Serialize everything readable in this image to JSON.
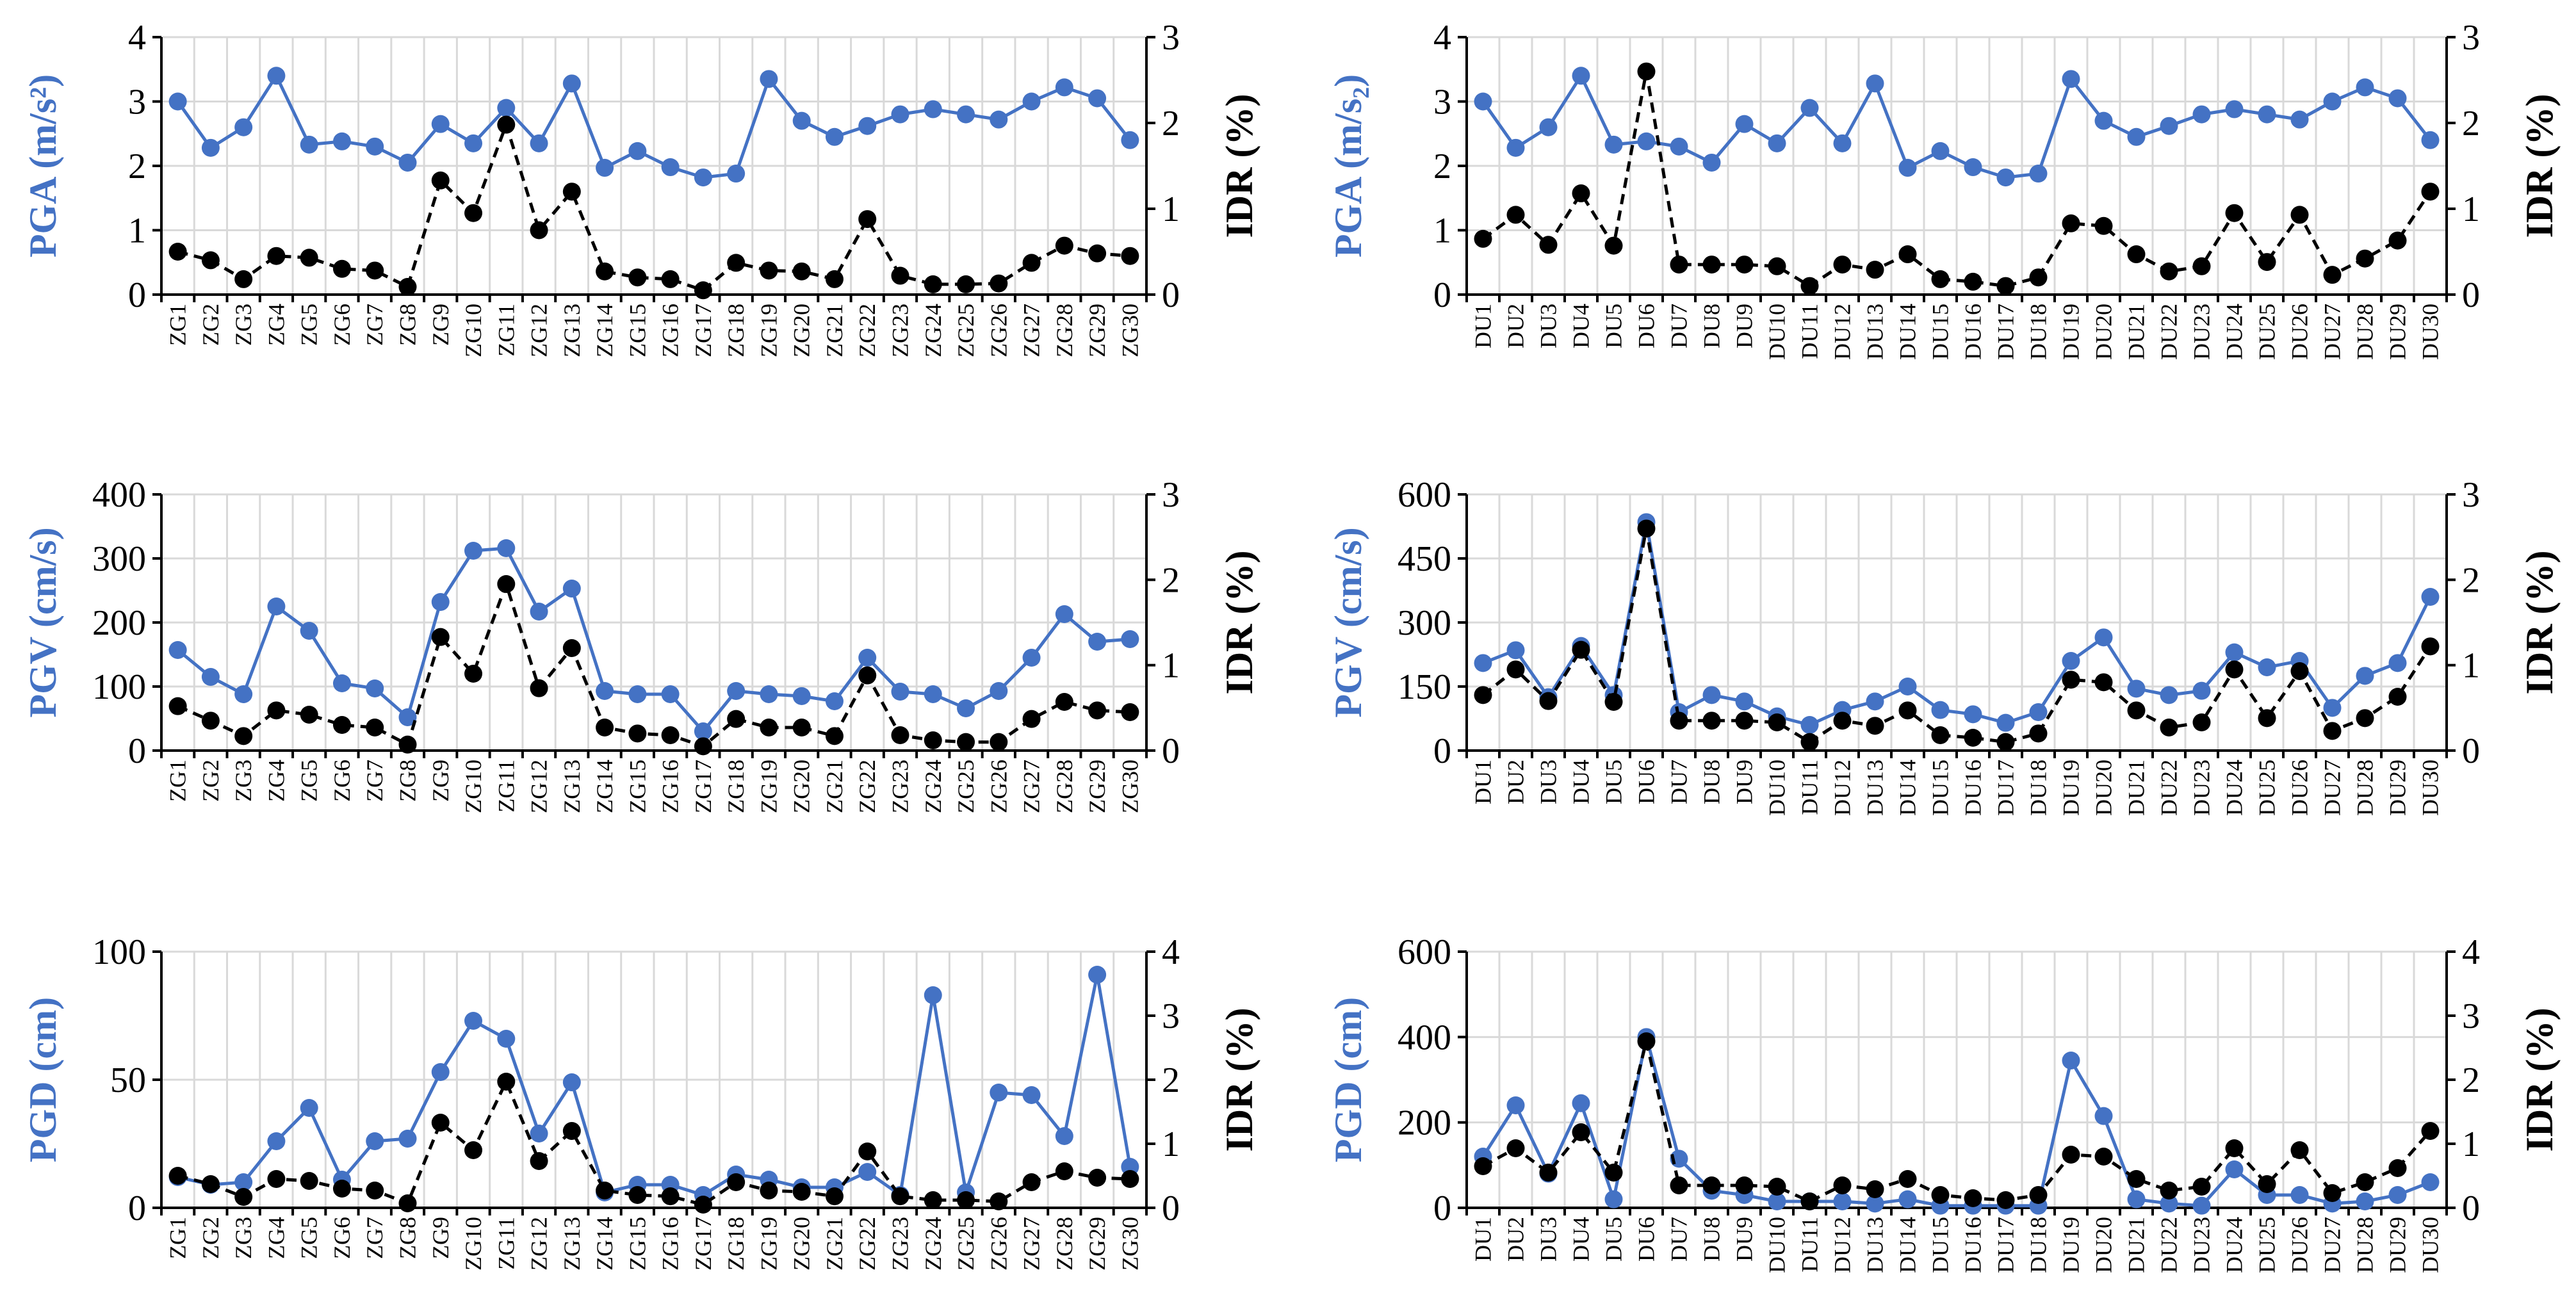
{
  "colors": {
    "ground_motion": "#4472c4",
    "idr": "#000000",
    "grid": "#d9d9d9"
  },
  "chart_data": [
    {
      "type": "line",
      "left_axis_title": "PGA (m/s²)",
      "right_axis_title": "IDR (%)",
      "categories": [
        "ZG1",
        "ZG2",
        "ZG3",
        "ZG4",
        "ZG5",
        "ZG6",
        "ZG7",
        "ZG8",
        "ZG9",
        "ZG10",
        "ZG11",
        "ZG12",
        "ZG13",
        "ZG14",
        "ZG15",
        "ZG16",
        "ZG17",
        "ZG18",
        "ZG19",
        "ZG20",
        "ZG21",
        "ZG22",
        "ZG23",
        "ZG24",
        "ZG25",
        "ZG26",
        "ZG27",
        "ZG28",
        "ZG29",
        "ZG30"
      ],
      "left_ylim": [
        0,
        4
      ],
      "left_ticks": [
        "0",
        "1",
        "2",
        "3",
        "4"
      ],
      "right_ylim": [
        0,
        3
      ],
      "right_ticks": [
        "0",
        "1",
        "2",
        "3"
      ],
      "series": [
        {
          "name": "PGA",
          "axis": "left",
          "style": "solid",
          "values": [
            3.0,
            2.28,
            2.6,
            3.4,
            2.33,
            2.38,
            2.3,
            2.05,
            2.65,
            2.35,
            2.9,
            2.35,
            3.28,
            1.97,
            2.23,
            1.98,
            1.82,
            1.88,
            3.35,
            2.7,
            2.45,
            2.62,
            2.8,
            2.88,
            2.8,
            2.72,
            3.0,
            3.22,
            3.05,
            2.4
          ]
        },
        {
          "name": "IDR",
          "axis": "right",
          "style": "dashed",
          "values": [
            0.5,
            0.4,
            0.18,
            0.45,
            0.43,
            0.3,
            0.28,
            0.09,
            1.33,
            0.95,
            1.98,
            0.75,
            1.2,
            0.27,
            0.2,
            0.18,
            0.05,
            0.37,
            0.28,
            0.27,
            0.18,
            0.88,
            0.22,
            0.12,
            0.12,
            0.13,
            0.37,
            0.57,
            0.48,
            0.45
          ]
        }
      ]
    },
    {
      "type": "line",
      "left_axis_title": "PGA (m/s₂)",
      "right_axis_title": "IDR (%)",
      "categories": [
        "DU1",
        "DU2",
        "DU3",
        "DU4",
        "DU5",
        "DU6",
        "DU7",
        "DU8",
        "DU9",
        "DU10",
        "DU11",
        "DU12",
        "DU13",
        "DU14",
        "DU15",
        "DU16",
        "DU17",
        "DU18",
        "DU19",
        "DU20",
        "DU21",
        "DU22",
        "DU23",
        "DU24",
        "DU25",
        "DU26",
        "DU27",
        "DU28",
        "DU29",
        "DU30"
      ],
      "left_ylim": [
        0,
        4
      ],
      "left_ticks": [
        "0",
        "1",
        "2",
        "3",
        "4"
      ],
      "right_ylim": [
        0,
        3
      ],
      "right_ticks": [
        "0",
        "1",
        "2",
        "3"
      ],
      "series": [
        {
          "name": "PGA",
          "axis": "left",
          "style": "solid",
          "values": [
            3.0,
            2.28,
            2.6,
            3.4,
            2.33,
            2.38,
            2.3,
            2.05,
            2.65,
            2.35,
            2.9,
            2.35,
            3.28,
            1.97,
            2.23,
            1.98,
            1.82,
            1.88,
            3.35,
            2.7,
            2.45,
            2.62,
            2.8,
            2.88,
            2.8,
            2.72,
            3.0,
            3.22,
            3.05,
            2.4
          ]
        },
        {
          "name": "IDR",
          "axis": "right",
          "style": "dashed",
          "values": [
            0.65,
            0.93,
            0.58,
            1.18,
            0.57,
            2.6,
            0.35,
            0.35,
            0.35,
            0.33,
            0.1,
            0.35,
            0.29,
            0.47,
            0.18,
            0.15,
            0.1,
            0.2,
            0.83,
            0.8,
            0.47,
            0.27,
            0.33,
            0.95,
            0.38,
            0.93,
            0.23,
            0.42,
            0.63,
            1.2
          ]
        }
      ]
    },
    {
      "type": "line",
      "left_axis_title": "PGV (cm/s)",
      "right_axis_title": "IDR (%)",
      "categories": [
        "ZG1",
        "ZG2",
        "ZG3",
        "ZG4",
        "ZG5",
        "ZG6",
        "ZG7",
        "ZG8",
        "ZG9",
        "ZG10",
        "ZG11",
        "ZG12",
        "ZG13",
        "ZG14",
        "ZG15",
        "ZG16",
        "ZG17",
        "ZG18",
        "ZG19",
        "ZG20",
        "ZG21",
        "ZG22",
        "ZG23",
        "ZG24",
        "ZG25",
        "ZG26",
        "ZG27",
        "ZG28",
        "ZG29",
        "ZG30"
      ],
      "left_ylim": [
        0,
        400
      ],
      "left_ticks": [
        "0",
        "100",
        "200",
        "300",
        "400"
      ],
      "right_ylim": [
        0,
        3
      ],
      "right_ticks": [
        "0",
        "1",
        "2",
        "3"
      ],
      "series": [
        {
          "name": "PGV",
          "axis": "left",
          "style": "solid",
          "values": [
            157,
            115,
            88,
            225,
            187,
            105,
            97,
            52,
            232,
            312,
            316,
            217,
            253,
            93,
            88,
            88,
            30,
            93,
            88,
            85,
            77,
            145,
            92,
            88,
            66,
            93,
            145,
            213,
            170,
            174
          ]
        },
        {
          "name": "IDR",
          "axis": "right",
          "style": "dashed",
          "values": [
            0.52,
            0.35,
            0.17,
            0.47,
            0.42,
            0.3,
            0.27,
            0.07,
            1.33,
            0.9,
            1.95,
            0.73,
            1.2,
            0.27,
            0.2,
            0.18,
            0.05,
            0.37,
            0.27,
            0.27,
            0.17,
            0.88,
            0.18,
            0.12,
            0.1,
            0.1,
            0.37,
            0.57,
            0.47,
            0.45
          ]
        }
      ]
    },
    {
      "type": "line",
      "left_axis_title": "PGV (cm/s)",
      "right_axis_title": "IDR (%)",
      "categories": [
        "DU1",
        "DU2",
        "DU3",
        "DU4",
        "DU5",
        "DU6",
        "DU7",
        "DU8",
        "DU9",
        "DU10",
        "DU11",
        "DU12",
        "DU13",
        "DU14",
        "DU15",
        "DU16",
        "DU17",
        "DU18",
        "DU19",
        "DU20",
        "DU21",
        "DU22",
        "DU23",
        "DU24",
        "DU25",
        "DU26",
        "DU27",
        "DU28",
        "DU29",
        "DU30"
      ],
      "left_ylim": [
        0,
        600
      ],
      "left_ticks": [
        "0",
        "150",
        "300",
        "450",
        "600"
      ],
      "right_ylim": [
        0,
        3
      ],
      "right_ticks": [
        "0",
        "1",
        "2",
        "3"
      ],
      "series": [
        {
          "name": "PGV",
          "axis": "left",
          "style": "solid",
          "values": [
            205,
            235,
            125,
            245,
            130,
            535,
            90,
            130,
            115,
            80,
            60,
            95,
            115,
            150,
            95,
            85,
            65,
            90,
            210,
            265,
            145,
            130,
            140,
            230,
            195,
            210,
            100,
            175,
            205,
            360
          ]
        },
        {
          "name": "IDR",
          "axis": "right",
          "style": "dashed",
          "values": [
            0.65,
            0.95,
            0.58,
            1.18,
            0.57,
            2.6,
            0.35,
            0.35,
            0.35,
            0.33,
            0.1,
            0.35,
            0.29,
            0.47,
            0.18,
            0.15,
            0.1,
            0.2,
            0.83,
            0.8,
            0.47,
            0.27,
            0.33,
            0.95,
            0.38,
            0.93,
            0.23,
            0.38,
            0.63,
            1.22
          ]
        }
      ]
    },
    {
      "type": "line",
      "left_axis_title": "PGD (cm)",
      "right_axis_title": "IDR (%)",
      "categories": [
        "ZG1",
        "ZG2",
        "ZG3",
        "ZG4",
        "ZG5",
        "ZG6",
        "ZG7",
        "ZG8",
        "ZG9",
        "ZG10",
        "ZG11",
        "ZG12",
        "ZG13",
        "ZG14",
        "ZG15",
        "ZG16",
        "ZG17",
        "ZG18",
        "ZG19",
        "ZG20",
        "ZG21",
        "ZG22",
        "ZG23",
        "ZG24",
        "ZG25",
        "ZG26",
        "ZG27",
        "ZG28",
        "ZG29",
        "ZG30"
      ],
      "left_ylim": [
        0,
        100
      ],
      "left_ticks": [
        "0",
        "50",
        "100"
      ],
      "right_ylim": [
        0,
        4
      ],
      "right_ticks": [
        "0",
        "1",
        "2",
        "3",
        "4"
      ],
      "series": [
        {
          "name": "PGD",
          "axis": "left",
          "style": "solid",
          "values": [
            12,
            9,
            10,
            26,
            39,
            11,
            26,
            27,
            53,
            73,
            66,
            29,
            49,
            6,
            9,
            9,
            5,
            13,
            11,
            8,
            8,
            14,
            5,
            83,
            6,
            45,
            44,
            28,
            91,
            16
          ]
        },
        {
          "name": "IDR",
          "axis": "right",
          "style": "dashed",
          "values": [
            0.5,
            0.37,
            0.17,
            0.45,
            0.42,
            0.3,
            0.27,
            0.07,
            1.33,
            0.9,
            1.97,
            0.73,
            1.2,
            0.27,
            0.2,
            0.18,
            0.05,
            0.4,
            0.27,
            0.25,
            0.18,
            0.88,
            0.18,
            0.12,
            0.12,
            0.1,
            0.4,
            0.57,
            0.47,
            0.45
          ]
        }
      ]
    },
    {
      "type": "line",
      "left_axis_title": "PGD (cm)",
      "right_axis_title": "IDR (%)",
      "categories": [
        "DU1",
        "DU2",
        "DU3",
        "DU4",
        "DU5",
        "DU6",
        "DU7",
        "DU8",
        "DU9",
        "DU10",
        "DU11",
        "DU12",
        "DU13",
        "DU14",
        "DU15",
        "DU16",
        "DU17",
        "DU18",
        "DU19",
        "DU20",
        "DU21",
        "DU22",
        "DU23",
        "DU24",
        "DU25",
        "DU26",
        "DU27",
        "DU28",
        "DU29",
        "DU30"
      ],
      "left_ylim": [
        0,
        600
      ],
      "left_ticks": [
        "0",
        "200",
        "400",
        "600"
      ],
      "right_ylim": [
        0,
        4
      ],
      "right_ticks": [
        "0",
        "1",
        "2",
        "3",
        "4"
      ],
      "series": [
        {
          "name": "PGD",
          "axis": "left",
          "style": "solid",
          "values": [
            120,
            240,
            80,
            245,
            20,
            400,
            115,
            40,
            30,
            15,
            15,
            15,
            10,
            20,
            5,
            5,
            5,
            5,
            345,
            215,
            20,
            10,
            5,
            90,
            30,
            30,
            10,
            15,
            30,
            60
          ]
        },
        {
          "name": "IDR",
          "axis": "right",
          "style": "dashed",
          "values": [
            0.65,
            0.93,
            0.55,
            1.18,
            0.55,
            2.6,
            0.35,
            0.35,
            0.35,
            0.33,
            0.1,
            0.35,
            0.29,
            0.45,
            0.2,
            0.15,
            0.12,
            0.2,
            0.83,
            0.8,
            0.45,
            0.27,
            0.33,
            0.93,
            0.37,
            0.9,
            0.23,
            0.4,
            0.62,
            1.2
          ]
        }
      ]
    }
  ]
}
